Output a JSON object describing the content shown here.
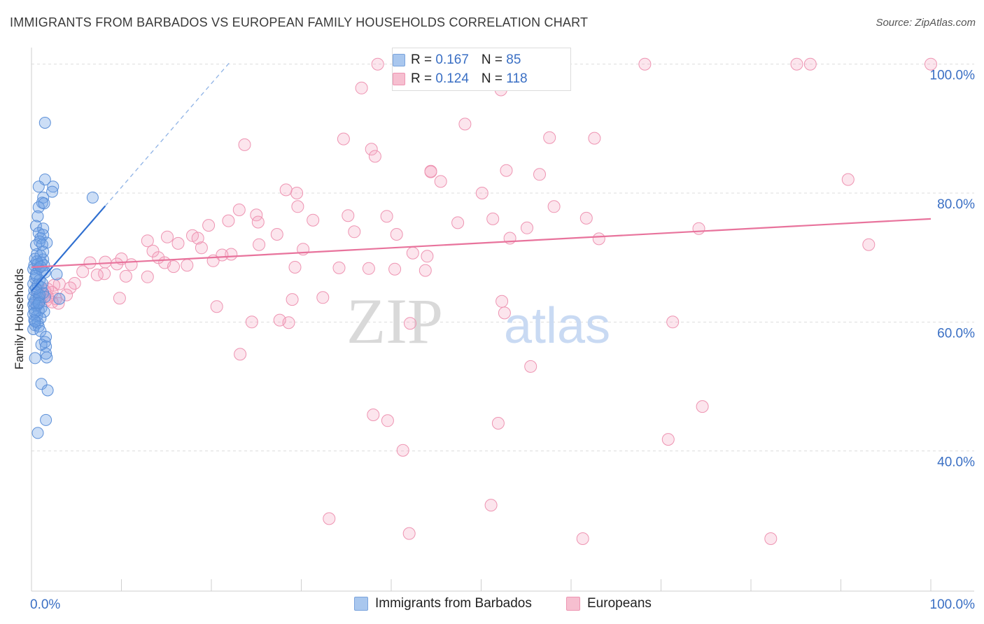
{
  "title": "IMMIGRANTS FROM BARBADOS VS EUROPEAN FAMILY HOUSEHOLDS CORRELATION CHART",
  "source": "Source: ZipAtlas.com",
  "watermark": {
    "zip": "ZIP",
    "atlas": "atlas"
  },
  "legend_stats": [
    {
      "r_label": "R = ",
      "r_value": "0.167",
      "n_label": "N = ",
      "n_value": "85",
      "color": "#a9c7ee",
      "border": "#7aa3dc"
    },
    {
      "r_label": "R = ",
      "r_value": "0.124",
      "n_label": "N = ",
      "n_value": "118",
      "color": "#f6bfd0",
      "border": "#ee94b2"
    }
  ],
  "legend_bottom": [
    {
      "label": "Immigrants from Barbados",
      "color": "#a9c7ee",
      "border": "#7aa3dc"
    },
    {
      "label": "Europeans",
      "color": "#f6bfd0",
      "border": "#ee94b2"
    }
  ],
  "colors": {
    "blue_fill": "rgba(110,160,230,0.35)",
    "blue_stroke": "#5b8fd8",
    "blue_line": "#2f6fd0",
    "pink_fill": "rgba(244,160,190,0.28)",
    "pink_stroke": "#ee94b2",
    "pink_line": "#e8739c",
    "axis_label": "#3a6fc4",
    "grid": "#dddddd"
  },
  "chart_data": {
    "type": "scatter",
    "title": "IMMIGRANTS FROM BARBADOS VS EUROPEAN FAMILY HOUSEHOLDS CORRELATION CHART",
    "xlabel": "",
    "ylabel": "Family Households",
    "xlim": [
      0,
      100
    ],
    "ylim": [
      20,
      103
    ],
    "x_tick_labels": [
      {
        "value": 0,
        "label": "0.0%"
      },
      {
        "value": 100,
        "label": "100.0%"
      }
    ],
    "y_tick_labels": [
      {
        "value": 40,
        "label": "40.0%"
      },
      {
        "value": 60,
        "label": "60.0%"
      },
      {
        "value": 80,
        "label": "80.0%"
      },
      {
        "value": 100,
        "label": "100.0%"
      }
    ],
    "series": [
      {
        "name": "Immigrants from Barbados",
        "R": 0.167,
        "N": 85,
        "trend": {
          "x0": 0,
          "y0": 64.8,
          "x1": 8.2,
          "y1": 78.0,
          "extend_to_x": 22.0,
          "extend_to_y": 100.2
        },
        "points": [
          [
            1.5,
            90.9
          ],
          [
            1.5,
            82.1
          ],
          [
            0.8,
            81.0
          ],
          [
            2.4,
            81.0
          ],
          [
            1.3,
            79.3
          ],
          [
            2.3,
            80.2
          ],
          [
            6.8,
            79.3
          ],
          [
            1.2,
            78.5
          ],
          [
            0.8,
            77.8
          ],
          [
            1.4,
            78.4
          ],
          [
            0.7,
            76.4
          ],
          [
            0.5,
            74.9
          ],
          [
            1.3,
            74.5
          ],
          [
            0.8,
            73.8
          ],
          [
            1.0,
            73.0
          ],
          [
            1.3,
            73.5
          ],
          [
            1.7,
            72.3
          ],
          [
            0.9,
            72.5
          ],
          [
            0.5,
            71.9
          ],
          [
            1.2,
            72.0
          ],
          [
            0.6,
            70.5
          ],
          [
            0.4,
            69.8
          ],
          [
            1.0,
            70.3
          ],
          [
            1.3,
            69.7
          ],
          [
            0.3,
            68.8
          ],
          [
            0.7,
            69.0
          ],
          [
            1.1,
            69.2
          ],
          [
            1.4,
            68.8
          ],
          [
            0.2,
            68.2
          ],
          [
            0.8,
            68.3
          ],
          [
            1.2,
            67.9
          ],
          [
            0.5,
            67.5
          ],
          [
            1.5,
            67.7
          ],
          [
            2.8,
            67.4
          ],
          [
            0.4,
            66.8
          ],
          [
            0.9,
            66.5
          ],
          [
            0.2,
            65.9
          ],
          [
            0.7,
            65.8
          ],
          [
            1.1,
            65.4
          ],
          [
            0.3,
            64.9
          ],
          [
            0.6,
            64.6
          ],
          [
            1.3,
            64.5
          ],
          [
            0.2,
            63.9
          ],
          [
            0.8,
            63.8
          ],
          [
            1.5,
            63.9
          ],
          [
            3.1,
            63.6
          ],
          [
            0.4,
            63.4
          ],
          [
            0.9,
            63.1
          ],
          [
            0.2,
            62.7
          ],
          [
            0.6,
            62.5
          ],
          [
            1.1,
            62.2
          ],
          [
            0.3,
            62.0
          ],
          [
            0.8,
            61.8
          ],
          [
            1.4,
            61.6
          ],
          [
            0.2,
            61.2
          ],
          [
            0.6,
            60.9
          ],
          [
            1.0,
            60.6
          ],
          [
            0.3,
            60.3
          ],
          [
            0.7,
            59.9
          ],
          [
            0.4,
            59.5
          ],
          [
            0.8,
            59.3
          ],
          [
            0.2,
            58.9
          ],
          [
            1.0,
            58.6
          ],
          [
            1.6,
            57.7
          ],
          [
            1.5,
            56.9
          ],
          [
            1.1,
            56.5
          ],
          [
            1.6,
            56.2
          ],
          [
            1.6,
            55.1
          ],
          [
            1.7,
            54.5
          ],
          [
            0.4,
            54.4
          ],
          [
            1.1,
            50.4
          ],
          [
            1.8,
            49.4
          ],
          [
            1.6,
            44.8
          ],
          [
            0.7,
            42.8
          ],
          [
            0.5,
            67.2
          ],
          [
            0.9,
            64.2
          ],
          [
            0.4,
            61.5
          ],
          [
            1.2,
            66.0
          ],
          [
            0.6,
            69.4
          ],
          [
            0.3,
            63.0
          ],
          [
            1.0,
            68.6
          ],
          [
            0.5,
            65.2
          ],
          [
            0.8,
            62.9
          ],
          [
            0.4,
            60.1
          ],
          [
            1.3,
            70.9
          ]
        ]
      },
      {
        "name": "Europeans",
        "R": 0.124,
        "N": 118,
        "trend": {
          "x0": 0,
          "y0": 68.5,
          "x1": 100,
          "y1": 76.0
        },
        "points": [
          [
            38.5,
            100
          ],
          [
            68.2,
            100
          ],
          [
            85.1,
            100
          ],
          [
            86.6,
            100
          ],
          [
            100.0,
            100
          ],
          [
            36.7,
            96.3
          ],
          [
            52.2,
            96.0
          ],
          [
            48.2,
            90.7
          ],
          [
            34.7,
            88.4
          ],
          [
            57.6,
            88.6
          ],
          [
            62.6,
            88.5
          ],
          [
            23.7,
            87.5
          ],
          [
            37.8,
            86.8
          ],
          [
            38.2,
            85.7
          ],
          [
            44.4,
            83.4
          ],
          [
            52.8,
            83.5
          ],
          [
            44.4,
            83.3
          ],
          [
            56.5,
            82.9
          ],
          [
            45.5,
            81.8
          ],
          [
            90.8,
            82.1
          ],
          [
            28.3,
            80.5
          ],
          [
            29.5,
            80.0
          ],
          [
            50.1,
            80.0
          ],
          [
            29.6,
            77.9
          ],
          [
            58.1,
            77.9
          ],
          [
            23.1,
            77.4
          ],
          [
            35.2,
            76.5
          ],
          [
            39.5,
            76.4
          ],
          [
            25.0,
            76.6
          ],
          [
            61.7,
            76.1
          ],
          [
            51.3,
            76.0
          ],
          [
            31.3,
            75.8
          ],
          [
            21.9,
            75.7
          ],
          [
            25.2,
            75.5
          ],
          [
            47.4,
            75.4
          ],
          [
            19.7,
            75.0
          ],
          [
            55.1,
            74.6
          ],
          [
            74.2,
            74.5
          ],
          [
            35.9,
            74.0
          ],
          [
            40.6,
            73.6
          ],
          [
            27.3,
            73.6
          ],
          [
            17.9,
            73.4
          ],
          [
            15.1,
            73.2
          ],
          [
            18.5,
            73.0
          ],
          [
            53.2,
            73.0
          ],
          [
            63.1,
            72.9
          ],
          [
            12.9,
            72.6
          ],
          [
            16.3,
            72.2
          ],
          [
            25.3,
            72.0
          ],
          [
            93.1,
            72.0
          ],
          [
            18.9,
            71.5
          ],
          [
            30.2,
            71.3
          ],
          [
            13.5,
            71.0
          ],
          [
            22.2,
            70.5
          ],
          [
            42.4,
            70.7
          ],
          [
            21.2,
            70.4
          ],
          [
            14.1,
            70.0
          ],
          [
            44.0,
            70.2
          ],
          [
            10.0,
            69.8
          ],
          [
            20.2,
            69.5
          ],
          [
            8.2,
            69.3
          ],
          [
            6.5,
            69.2
          ],
          [
            14.8,
            69.2
          ],
          [
            9.5,
            69.0
          ],
          [
            11.1,
            68.9
          ],
          [
            17.3,
            68.8
          ],
          [
            15.8,
            68.6
          ],
          [
            29.3,
            68.5
          ],
          [
            34.2,
            68.4
          ],
          [
            37.5,
            68.3
          ],
          [
            40.4,
            68.2
          ],
          [
            43.8,
            68.0
          ],
          [
            5.7,
            67.8
          ],
          [
            8.1,
            67.5
          ],
          [
            7.3,
            67.3
          ],
          [
            10.5,
            67.1
          ],
          [
            12.9,
            67.0
          ],
          [
            4.8,
            66.0
          ],
          [
            3.1,
            65.9
          ],
          [
            2.5,
            65.7
          ],
          [
            4.3,
            65.3
          ],
          [
            1.8,
            65.1
          ],
          [
            1.5,
            64.8
          ],
          [
            0.7,
            64.6
          ],
          [
            2.3,
            64.6
          ],
          [
            1.2,
            64.4
          ],
          [
            3.9,
            64.2
          ],
          [
            1.8,
            63.9
          ],
          [
            2.7,
            63.6
          ],
          [
            0.9,
            63.5
          ],
          [
            1.6,
            63.3
          ],
          [
            2.3,
            63.1
          ],
          [
            3.0,
            62.9
          ],
          [
            0.6,
            62.7
          ],
          [
            9.8,
            63.7
          ],
          [
            29.0,
            63.5
          ],
          [
            32.4,
            63.8
          ],
          [
            52.3,
            63.2
          ],
          [
            20.6,
            62.4
          ],
          [
            52.6,
            61.4
          ],
          [
            24.5,
            60.0
          ],
          [
            27.6,
            60.3
          ],
          [
            28.6,
            59.9
          ],
          [
            42.1,
            59.8
          ],
          [
            71.3,
            60.0
          ],
          [
            23.2,
            55.0
          ],
          [
            55.5,
            53.1
          ],
          [
            74.6,
            46.9
          ],
          [
            38.0,
            45.6
          ],
          [
            39.6,
            44.7
          ],
          [
            51.9,
            44.3
          ],
          [
            70.8,
            41.8
          ],
          [
            41.3,
            40.1
          ],
          [
            33.1,
            29.5
          ],
          [
            51.1,
            31.6
          ],
          [
            42.0,
            27.2
          ],
          [
            61.3,
            26.4
          ],
          [
            82.2,
            26.4
          ]
        ]
      }
    ]
  }
}
